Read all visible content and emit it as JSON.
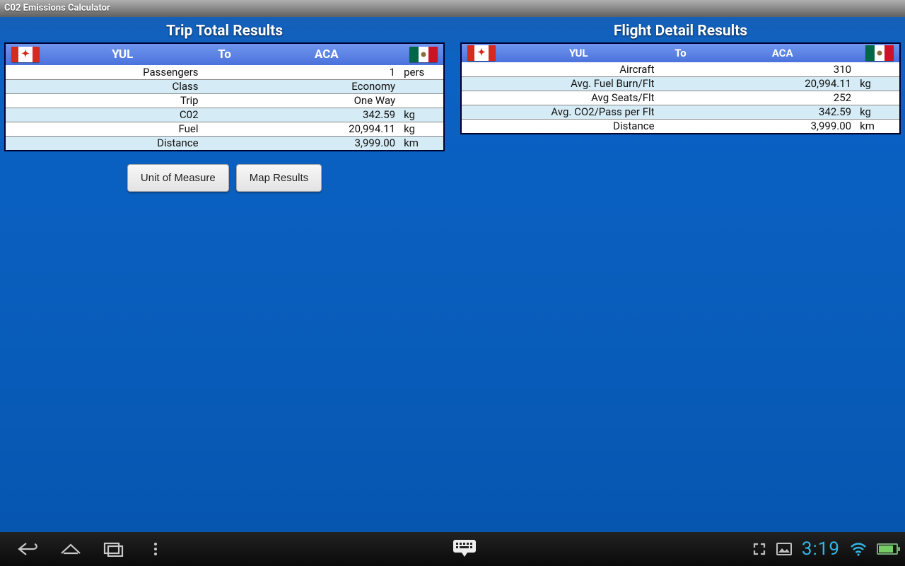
{
  "app": {
    "title": "C02 Emissions Calculator"
  },
  "colors": {
    "header_grad_top": "#6f95ef",
    "header_grad_bottom": "#4a72dc",
    "alt_row": "#d5ebf5",
    "content_bg_top": "#1560b8",
    "content_bg_bottom": "#0656b0",
    "statusbar_accent": "#33b5e5"
  },
  "route": {
    "origin_code": "YUL",
    "to_label": "To",
    "dest_code": "ACA",
    "origin_flag": "canada",
    "dest_flag": "mexico"
  },
  "panels": {
    "trip": {
      "title": "Trip Total Results",
      "rows": [
        {
          "label": "Passengers",
          "value": "1",
          "unit": "pers",
          "alt": false
        },
        {
          "label": "Class",
          "value": "Economy",
          "unit": "",
          "alt": true
        },
        {
          "label": "Trip",
          "value": "One Way",
          "unit": "",
          "alt": false
        },
        {
          "label": "C02",
          "value": "342.59",
          "unit": "kg",
          "alt": true
        },
        {
          "label": "Fuel",
          "value": "20,994.11",
          "unit": "kg",
          "alt": false
        },
        {
          "label": "Distance",
          "value": "3,999.00",
          "unit": "km",
          "alt": true
        }
      ]
    },
    "flight": {
      "title": "Flight Detail Results",
      "rows": [
        {
          "label": "Aircraft",
          "value": "310",
          "unit": "",
          "alt": false
        },
        {
          "label": "Avg. Fuel Burn/Flt",
          "value": "20,994.11",
          "unit": "kg",
          "alt": true
        },
        {
          "label": "Avg Seats/Flt",
          "value": "252",
          "unit": "",
          "alt": false
        },
        {
          "label": "Avg. CO2/Pass per Flt",
          "value": "342.59",
          "unit": "kg",
          "alt": true
        },
        {
          "label": "Distance",
          "value": "3,999.00",
          "unit": "km",
          "alt": false
        }
      ]
    }
  },
  "buttons": {
    "unit": "Unit of Measure",
    "map": "Map Results"
  },
  "statusbar": {
    "time": "3:19"
  }
}
